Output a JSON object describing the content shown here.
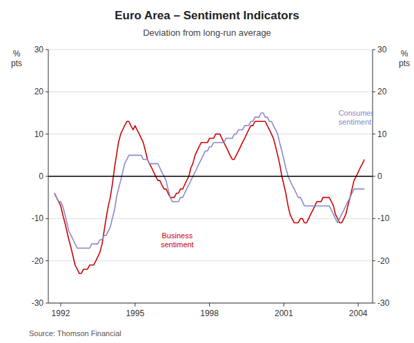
{
  "chart_data": {
    "type": "line",
    "title": "Euro Area – Sentiment Indicators",
    "subtitle": "Deviation from long-run average",
    "ylabel": "%\npts",
    "y2label": "%\npts",
    "source": "Source: Thomson Financial",
    "grid": true,
    "xlim": [
      1991.5,
      2004.58
    ],
    "xticks": [
      1992,
      1995,
      1998,
      2001,
      2004
    ],
    "ylim": [
      -30,
      30
    ],
    "yticks": [
      -30,
      -20,
      -10,
      0,
      10,
      20,
      30
    ],
    "y2lim": [
      -30,
      30
    ],
    "y2ticks": [
      -30,
      -20,
      -10,
      0,
      10,
      20,
      30
    ],
    "x": [
      1991.75,
      1991.83,
      1991.92,
      1992.0,
      1992.08,
      1992.17,
      1992.25,
      1992.33,
      1992.42,
      1992.5,
      1992.58,
      1992.67,
      1992.75,
      1992.83,
      1992.92,
      1993.0,
      1993.08,
      1993.17,
      1993.25,
      1993.33,
      1993.42,
      1993.5,
      1993.58,
      1993.67,
      1993.75,
      1993.83,
      1993.92,
      1994.0,
      1994.08,
      1994.17,
      1994.25,
      1994.33,
      1994.42,
      1994.5,
      1994.58,
      1994.67,
      1994.75,
      1994.83,
      1994.92,
      1995.0,
      1995.08,
      1995.17,
      1995.25,
      1995.33,
      1995.42,
      1995.5,
      1995.58,
      1995.67,
      1995.75,
      1995.83,
      1995.92,
      1996.0,
      1996.08,
      1996.17,
      1996.25,
      1996.33,
      1996.42,
      1996.5,
      1996.58,
      1996.67,
      1996.75,
      1996.83,
      1996.92,
      1997.0,
      1997.08,
      1997.17,
      1997.25,
      1997.33,
      1997.42,
      1997.5,
      1997.58,
      1997.67,
      1997.75,
      1997.83,
      1997.92,
      1998.0,
      1998.08,
      1998.17,
      1998.25,
      1998.33,
      1998.42,
      1998.5,
      1998.58,
      1998.67,
      1998.75,
      1998.83,
      1998.92,
      1999.0,
      1999.08,
      1999.17,
      1999.25,
      1999.33,
      1999.42,
      1999.5,
      1999.58,
      1999.67,
      1999.75,
      1999.83,
      1999.92,
      2000.0,
      2000.08,
      2000.17,
      2000.25,
      2000.33,
      2000.42,
      2000.5,
      2000.58,
      2000.67,
      2000.75,
      2000.83,
      2000.92,
      2001.0,
      2001.08,
      2001.17,
      2001.25,
      2001.33,
      2001.42,
      2001.5,
      2001.58,
      2001.67,
      2001.75,
      2001.83,
      2001.92,
      2002.0,
      2002.08,
      2002.17,
      2002.25,
      2002.33,
      2002.42,
      2002.5,
      2002.58,
      2002.67,
      2002.75,
      2002.83,
      2002.92,
      2003.0,
      2003.08,
      2003.17,
      2003.25,
      2003.33,
      2003.42,
      2003.5,
      2003.58,
      2003.67,
      2003.75,
      2003.83,
      2003.92,
      2004.0,
      2004.08,
      2004.17,
      2004.25
    ],
    "series": [
      {
        "color": "#cc0000",
        "values": [
          -4,
          -5,
          -6,
          -7,
          -9,
          -11,
          -13,
          -15,
          -17,
          -19,
          -21,
          -22,
          -23,
          -23,
          -22,
          -22,
          -22,
          -21,
          -21,
          -21,
          -20,
          -19,
          -18,
          -16,
          -13,
          -10,
          -7,
          -5,
          -2,
          2,
          5,
          8,
          10,
          11,
          12,
          13,
          13,
          12,
          11,
          12,
          11,
          10,
          9,
          8,
          6,
          4,
          3,
          2,
          1,
          0,
          -1,
          -1,
          -2,
          -3,
          -3,
          -4,
          -5,
          -5,
          -5,
          -4,
          -4,
          -3,
          -3,
          -2,
          -1,
          0,
          2,
          3,
          5,
          6,
          7,
          8,
          8,
          8,
          8,
          9,
          9,
          9,
          10,
          10,
          10,
          9,
          8,
          7,
          6,
          5,
          4,
          4,
          5,
          6,
          7,
          8,
          9,
          10,
          11,
          12,
          12,
          13,
          13,
          13,
          13,
          13,
          13,
          12,
          11,
          10,
          9,
          7,
          5,
          3,
          0,
          -2,
          -4,
          -7,
          -9,
          -10,
          -11,
          -11,
          -11,
          -10,
          -10,
          -11,
          -11,
          -10,
          -9,
          -8,
          -7,
          -6,
          -6,
          -6,
          -5,
          -5,
          -5,
          -5,
          -6,
          -7,
          -9,
          -10,
          -11,
          -11,
          -10,
          -9,
          -7,
          -5,
          -3,
          -1,
          0,
          1,
          2,
          3,
          4
        ]
      },
      {
        "color": "#8888cc",
        "values": [
          -4,
          -5,
          -6,
          -6,
          -7,
          -9,
          -11,
          -13,
          -14,
          -15,
          -16,
          -17,
          -17,
          -17,
          -17,
          -17,
          -17,
          -17,
          -16,
          -16,
          -16,
          -16,
          -15,
          -15,
          -14,
          -14,
          -13,
          -12,
          -10,
          -8,
          -5,
          -3,
          -1,
          1,
          3,
          4,
          5,
          5,
          5,
          5,
          5,
          5,
          5,
          4,
          4,
          4,
          3,
          3,
          3,
          3,
          3,
          2,
          1,
          0,
          -1,
          -3,
          -5,
          -6,
          -6,
          -6,
          -6,
          -5,
          -5,
          -4,
          -3,
          -2,
          -1,
          0,
          1,
          2,
          3,
          4,
          5,
          6,
          6,
          7,
          7,
          8,
          8,
          8,
          8,
          8,
          8,
          9,
          9,
          9,
          9,
          10,
          10,
          11,
          11,
          11,
          12,
          12,
          12,
          13,
          13,
          14,
          14,
          14,
          15,
          15,
          14,
          14,
          13,
          13,
          12,
          11,
          10,
          8,
          6,
          4,
          2,
          0,
          -1,
          -2,
          -3,
          -4,
          -5,
          -5,
          -6,
          -7,
          -7,
          -7,
          -7,
          -7,
          -7,
          -7,
          -7,
          -7,
          -7,
          -7,
          -7,
          -7,
          -8,
          -9,
          -10,
          -11,
          -10,
          -9,
          -8,
          -7,
          -6,
          -5,
          -4,
          -3,
          -3,
          -3,
          -3,
          -3,
          -3
        ]
      }
    ],
    "annotations": [
      {
        "text": "Business\nsentiment",
        "x": 1996.7,
        "y": -15,
        "color": "#cc0000"
      },
      {
        "text": "Consumer\nsentiment",
        "x": 2003.2,
        "y": 14,
        "color": "#8888cc"
      }
    ]
  }
}
